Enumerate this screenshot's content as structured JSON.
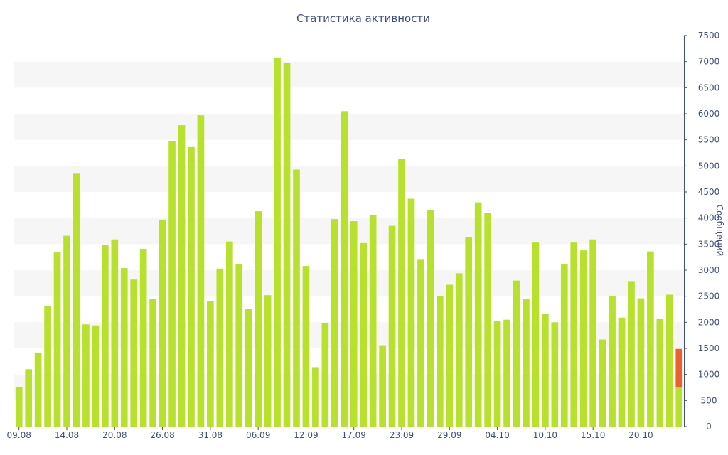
{
  "chart_data": {
    "type": "bar",
    "title": "Статистика активности",
    "xlabel": "",
    "ylabel": "Сообщений",
    "ylim": [
      0,
      7500
    ],
    "y_ticks": [
      0,
      500,
      1000,
      1500,
      2000,
      2500,
      3000,
      3500,
      4000,
      4500,
      5000,
      5500,
      6000,
      6500,
      7000,
      7500
    ],
    "y_axis_side": "right",
    "grid": "alternating horizontal bands",
    "x_tick_labels": [
      {
        "index": 0,
        "label": "09.08"
      },
      {
        "index": 5,
        "label": "14.08"
      },
      {
        "index": 10,
        "label": "20.08"
      },
      {
        "index": 15,
        "label": "26.08"
      },
      {
        "index": 20,
        "label": "31.08"
      },
      {
        "index": 25,
        "label": "06.09"
      },
      {
        "index": 30,
        "label": "12.09"
      },
      {
        "index": 35,
        "label": "17.09"
      },
      {
        "index": 40,
        "label": "23.09"
      },
      {
        "index": 45,
        "label": "29.09"
      },
      {
        "index": 50,
        "label": "04.10"
      },
      {
        "index": 55,
        "label": "10.10"
      },
      {
        "index": 60,
        "label": "15.10"
      },
      {
        "index": 65,
        "label": "20.10"
      }
    ],
    "values": [
      760,
      1100,
      1420,
      2320,
      3340,
      3660,
      4850,
      1960,
      1940,
      3490,
      3590,
      3040,
      2820,
      3410,
      2450,
      3970,
      5470,
      5780,
      5360,
      5970,
      2400,
      3030,
      3550,
      3110,
      2250,
      4130,
      2520,
      7080,
      6980,
      4930,
      3080,
      1140,
      1990,
      3980,
      6050,
      3940,
      3520,
      4060,
      1560,
      3850,
      5130,
      4370,
      3200,
      4150,
      2510,
      2720,
      2940,
      3640,
      4300,
      4100,
      2020,
      2050,
      2800,
      2440,
      3530,
      2160,
      2000,
      3110,
      3530,
      3380,
      3590,
      1670,
      2510,
      2090,
      2790,
      2460,
      3360,
      2070,
      2530,
      1490
    ],
    "colors": {
      "bar": "#b8e12e",
      "highlight": "#e8612f",
      "axis": "#3e4f82",
      "grid_band": "#f6f6f6"
    },
    "highlight_last_bar": true,
    "highlight_split_value": 760
  }
}
